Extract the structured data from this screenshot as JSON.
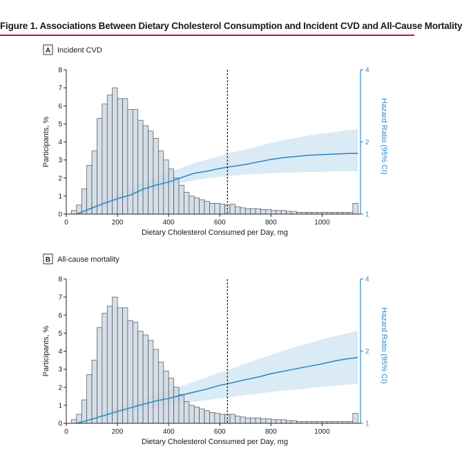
{
  "figure": {
    "title": "Figure 1. Associations Between Dietary Cholesterol Consumption and Incident CVD and All-Cause Mortality",
    "accent_color": "#c8102e",
    "bar_fill": "#ccd7e2",
    "bar_stroke": "#4a4f57",
    "line_color": "#2b8cc4",
    "ci_color": "#d3e7f5"
  },
  "chart_data": [
    {
      "type": "bar",
      "panel_letter": "A",
      "panel_title": "Incident CVD",
      "xlabel": "Dietary Cholesterol Consumed per Day, mg",
      "ylabel": "Participants, %",
      "y2label": "Hazard Ratio (95% CI)",
      "xlim": [
        0,
        1150
      ],
      "ylim": [
        0,
        8
      ],
      "y2lim": [
        1,
        4
      ],
      "y2_scale": "log",
      "xticks": [
        0,
        200,
        400,
        600,
        800,
        1000
      ],
      "yticks": [
        0,
        1,
        2,
        3,
        4,
        5,
        6,
        7,
        8
      ],
      "y2ticks": [
        1,
        2,
        4
      ],
      "reference_line_x": 630,
      "bin_width": 20,
      "bin_starts": [
        20,
        40,
        60,
        80,
        100,
        120,
        140,
        160,
        180,
        200,
        220,
        240,
        260,
        280,
        300,
        320,
        340,
        360,
        380,
        400,
        420,
        440,
        460,
        480,
        500,
        520,
        540,
        560,
        580,
        600,
        620,
        640,
        660,
        680,
        700,
        720,
        740,
        760,
        780,
        800,
        820,
        840,
        860,
        880,
        900,
        920,
        940,
        960,
        980,
        1000,
        1020,
        1040,
        1060,
        1080,
        1100,
        1120
      ],
      "values": [
        0.2,
        0.5,
        1.4,
        2.7,
        3.5,
        5.3,
        6.1,
        6.6,
        7.0,
        6.4,
        6.4,
        5.8,
        5.8,
        5.2,
        4.9,
        4.6,
        4.2,
        3.5,
        3.0,
        2.5,
        2.0,
        1.6,
        1.2,
        1.0,
        0.9,
        0.8,
        0.7,
        0.6,
        0.6,
        0.55,
        0.5,
        0.55,
        0.4,
        0.35,
        0.3,
        0.3,
        0.3,
        0.25,
        0.25,
        0.2,
        0.2,
        0.2,
        0.15,
        0.15,
        0.1,
        0.1,
        0.1,
        0.1,
        0.1,
        0.1,
        0.1,
        0.1,
        0.1,
        0.1,
        0.1,
        0.6
      ],
      "hazard_ratio": {
        "x": [
          40,
          100,
          150,
          200,
          250,
          300,
          350,
          400,
          450,
          500,
          550,
          600,
          630,
          700,
          750,
          800,
          850,
          900,
          950,
          1000,
          1050,
          1100,
          1140
        ],
        "hr": [
          1.0,
          1.06,
          1.11,
          1.16,
          1.2,
          1.27,
          1.32,
          1.36,
          1.42,
          1.48,
          1.51,
          1.55,
          1.57,
          1.61,
          1.65,
          1.69,
          1.72,
          1.74,
          1.76,
          1.77,
          1.78,
          1.79,
          1.79
        ],
        "lower": [
          1.0,
          1.04,
          1.08,
          1.13,
          1.18,
          1.23,
          1.27,
          1.31,
          1.35,
          1.38,
          1.41,
          1.43,
          1.44,
          1.46,
          1.47,
          1.48,
          1.49,
          1.49,
          1.5,
          1.5,
          1.51,
          1.51,
          1.51
        ],
        "upper": [
          1.0,
          1.09,
          1.15,
          1.21,
          1.29,
          1.35,
          1.42,
          1.49,
          1.56,
          1.63,
          1.69,
          1.74,
          1.79,
          1.86,
          1.92,
          1.98,
          2.04,
          2.08,
          2.13,
          2.17,
          2.2,
          2.24,
          2.26
        ]
      }
    },
    {
      "type": "bar",
      "panel_letter": "B",
      "panel_title": "All-cause mortality",
      "xlabel": "Dietary Cholesterol Consumed per Day, mg",
      "ylabel": "Participants, %",
      "y2label": "Hazard Ratio (95% CI)",
      "xlim": [
        0,
        1150
      ],
      "ylim": [
        0,
        8
      ],
      "y2lim": [
        1,
        4
      ],
      "y2_scale": "log",
      "xticks": [
        0,
        200,
        400,
        600,
        800,
        1000
      ],
      "yticks": [
        0,
        1,
        2,
        3,
        4,
        5,
        6,
        7,
        8
      ],
      "y2ticks": [
        1,
        2,
        4
      ],
      "reference_line_x": 630,
      "bin_width": 20,
      "bin_starts": [
        20,
        40,
        60,
        80,
        100,
        120,
        140,
        160,
        180,
        200,
        220,
        240,
        260,
        280,
        300,
        320,
        340,
        360,
        380,
        400,
        420,
        440,
        460,
        480,
        500,
        520,
        540,
        560,
        580,
        600,
        620,
        640,
        660,
        680,
        700,
        720,
        740,
        760,
        780,
        800,
        820,
        840,
        860,
        880,
        900,
        920,
        940,
        960,
        980,
        1000,
        1020,
        1040,
        1060,
        1080,
        1100,
        1120
      ],
      "values": [
        0.2,
        0.5,
        1.3,
        2.7,
        3.5,
        5.3,
        6.1,
        6.5,
        7.0,
        6.4,
        6.4,
        5.7,
        5.6,
        5.1,
        4.9,
        4.6,
        4.1,
        3.4,
        2.9,
        2.5,
        2.0,
        1.6,
        1.2,
        1.0,
        0.9,
        0.8,
        0.7,
        0.6,
        0.55,
        0.5,
        0.5,
        0.5,
        0.4,
        0.35,
        0.3,
        0.3,
        0.3,
        0.25,
        0.25,
        0.2,
        0.2,
        0.2,
        0.15,
        0.15,
        0.1,
        0.1,
        0.1,
        0.1,
        0.1,
        0.1,
        0.1,
        0.1,
        0.1,
        0.1,
        0.1,
        0.55
      ],
      "hazard_ratio": {
        "x": [
          40,
          100,
          150,
          200,
          250,
          300,
          350,
          400,
          450,
          500,
          550,
          600,
          630,
          700,
          750,
          800,
          850,
          900,
          950,
          1000,
          1050,
          1100,
          1140
        ],
        "hr": [
          1.0,
          1.04,
          1.08,
          1.12,
          1.16,
          1.2,
          1.24,
          1.27,
          1.31,
          1.35,
          1.39,
          1.44,
          1.46,
          1.52,
          1.56,
          1.61,
          1.65,
          1.69,
          1.73,
          1.77,
          1.82,
          1.86,
          1.88
        ],
        "lower": [
          1.0,
          1.03,
          1.06,
          1.09,
          1.12,
          1.14,
          1.17,
          1.19,
          1.21,
          1.23,
          1.25,
          1.27,
          1.28,
          1.31,
          1.33,
          1.35,
          1.37,
          1.38,
          1.4,
          1.42,
          1.43,
          1.45,
          1.46
        ],
        "upper": [
          1.0,
          1.06,
          1.11,
          1.16,
          1.21,
          1.27,
          1.32,
          1.37,
          1.43,
          1.49,
          1.56,
          1.63,
          1.67,
          1.77,
          1.85,
          1.93,
          2.01,
          2.09,
          2.16,
          2.24,
          2.31,
          2.38,
          2.43
        ]
      }
    }
  ]
}
